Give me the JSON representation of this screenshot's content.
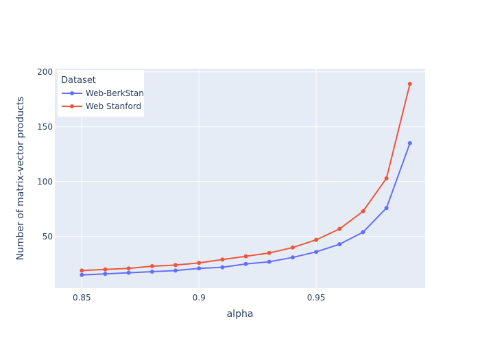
{
  "chart_data": {
    "type": "line",
    "xlabel": "alpha",
    "ylabel": "Number of matrix-vector products",
    "x": [
      0.85,
      0.86,
      0.87,
      0.88,
      0.89,
      0.9,
      0.91,
      0.92,
      0.93,
      0.94,
      0.95,
      0.96,
      0.97,
      0.98,
      0.99
    ],
    "xlim": [
      0.8385,
      0.9965
    ],
    "ylim": [
      3,
      203
    ],
    "xticks": [
      0.85,
      0.9,
      0.95
    ],
    "xtick_labels": [
      "0.85",
      "0.9",
      "0.95"
    ],
    "yticks": [
      50,
      100,
      150,
      200
    ],
    "ytick_labels": [
      "50",
      "100",
      "150",
      "200"
    ],
    "legend": {
      "title": "Dataset",
      "position": "top-left"
    },
    "grid": true,
    "plot_bg": "#e5ecf6",
    "series": [
      {
        "name": "Web-BerkStan",
        "color": "#636efa",
        "values": [
          15,
          16,
          17,
          18,
          19,
          21,
          22,
          25,
          27,
          31,
          36,
          43,
          54,
          76,
          135
        ]
      },
      {
        "name": "Web Stanford",
        "color": "#ef553b",
        "values": [
          19,
          20,
          21,
          23,
          24,
          26,
          29,
          32,
          35,
          40,
          47,
          57,
          73,
          103,
          189
        ]
      }
    ]
  }
}
